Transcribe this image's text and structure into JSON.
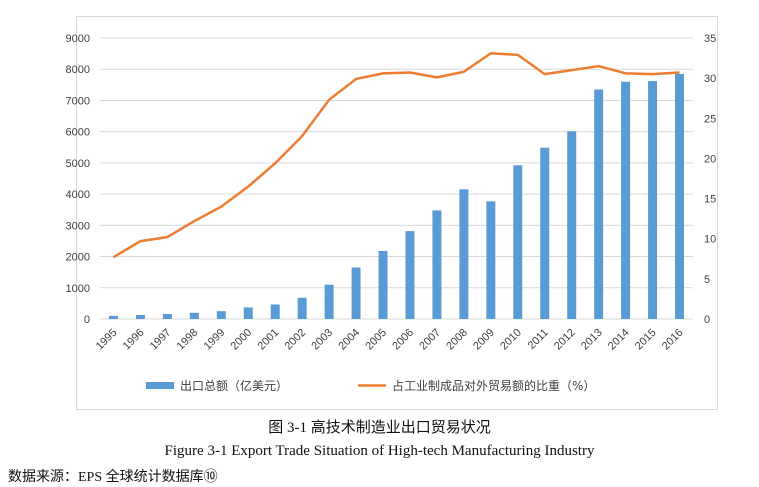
{
  "chart_data": {
    "type": "bar+line",
    "categories": [
      "1995",
      "1996",
      "1997",
      "1998",
      "1999",
      "2000",
      "2001",
      "2002",
      "2003",
      "2004",
      "2005",
      "2006",
      "2007",
      "2008",
      "2009",
      "2010",
      "2011",
      "2012",
      "2013",
      "2014",
      "2015",
      "2016"
    ],
    "series": [
      {
        "name": "出口总额（亿美元）",
        "type": "bar",
        "axis": "left",
        "color": "#5b9bd5",
        "values": [
          100,
          130,
          160,
          200,
          250,
          370,
          465,
          680,
          1100,
          1650,
          2180,
          2815,
          3478,
          4156,
          3769,
          4924,
          5488,
          6012,
          7350,
          7600,
          7620,
          7850
        ]
      },
      {
        "name": "占工业制成品对外贸易额的比重（%）",
        "type": "line",
        "axis": "right",
        "color": "#ed7d31",
        "values": [
          7.7,
          9.7,
          10.2,
          12.2,
          14.0,
          16.5,
          19.4,
          22.8,
          27.3,
          29.9,
          30.6,
          30.7,
          30.1,
          30.8,
          33.1,
          32.9,
          30.5,
          31.0,
          31.5,
          30.6,
          30.5,
          30.7
        ]
      }
    ],
    "left_axis": {
      "ylim": [
        0,
        9000
      ],
      "ticks": [
        0,
        1000,
        2000,
        3000,
        4000,
        5000,
        6000,
        7000,
        8000,
        9000
      ]
    },
    "right_axis": {
      "ylim": [
        0,
        35
      ],
      "ticks": [
        0,
        5,
        10,
        15,
        20,
        25,
        30,
        35
      ]
    },
    "grid": true,
    "legend": "bottom"
  },
  "caption_cn": "图 3-1  高技术制造业出口贸易状况",
  "caption_en": "Figure 3-1 Export Trade Situation of High-tech Manufacturing Industry",
  "source": "数据来源：EPS 全球统计数据库⑩"
}
